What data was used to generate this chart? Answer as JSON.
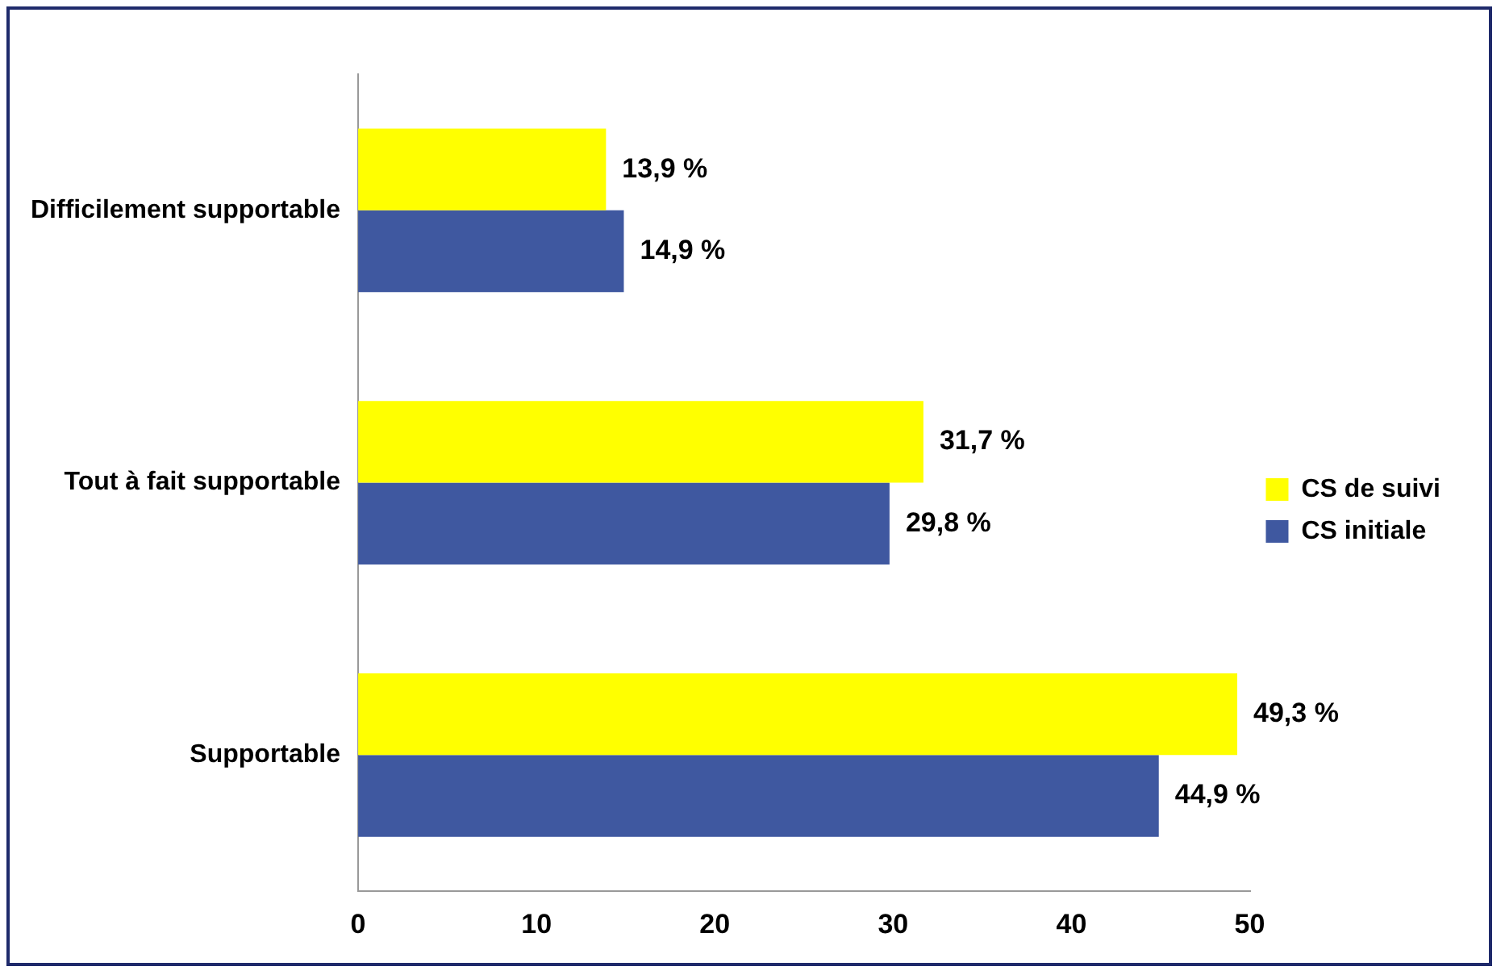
{
  "chart_data": {
    "type": "bar",
    "orientation": "horizontal",
    "categories": [
      "Difficilement supportable",
      "Tout à fait supportable",
      "Supportable"
    ],
    "series": [
      {
        "name": "CS de suivi",
        "color": "#ffff00",
        "values": [
          13.9,
          31.7,
          49.3
        ],
        "value_labels": [
          "13,9 %",
          "31,7 %",
          "49,3 %"
        ]
      },
      {
        "name": "CS initiale",
        "color": "#3f58a0",
        "values": [
          14.9,
          29.8,
          44.9
        ],
        "value_labels": [
          "14,9 %",
          "29,8 %",
          "44,9 %"
        ]
      }
    ],
    "xlim": [
      0,
      50
    ],
    "xticks": [
      0,
      10,
      20,
      30,
      40,
      50
    ],
    "grid": false,
    "legend": "right"
  }
}
